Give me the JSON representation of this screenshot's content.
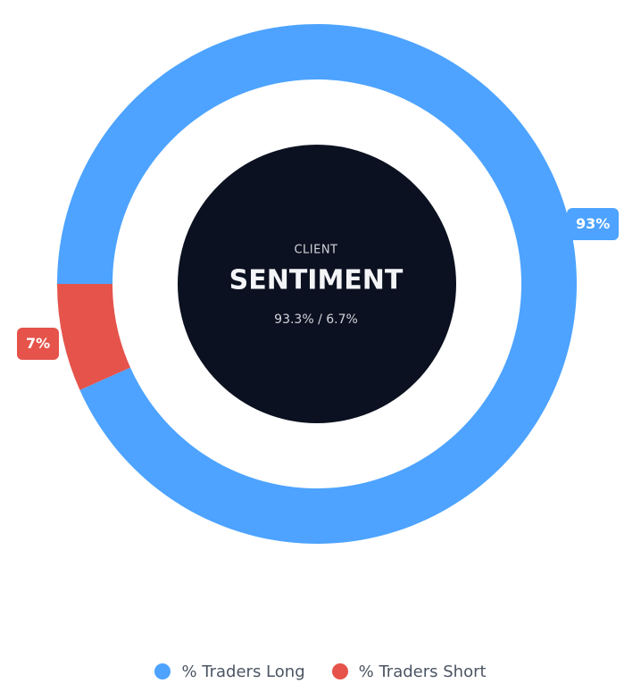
{
  "chart_data": {
    "type": "pie",
    "variant": "donut",
    "center": {
      "kicker": "CLIENT",
      "title": "SENTIMENT",
      "ratio": "93.3% / 6.7%"
    },
    "slices": [
      {
        "name": "% Traders Long",
        "value": 93.3,
        "label": "93%",
        "color": "#4da3ff"
      },
      {
        "name": "% Traders Short",
        "value": 6.7,
        "label": "7%",
        "color": "#e5534b"
      }
    ],
    "start": "9 o'clock (west), clockwise",
    "legend_position": "bottom-center"
  }
}
